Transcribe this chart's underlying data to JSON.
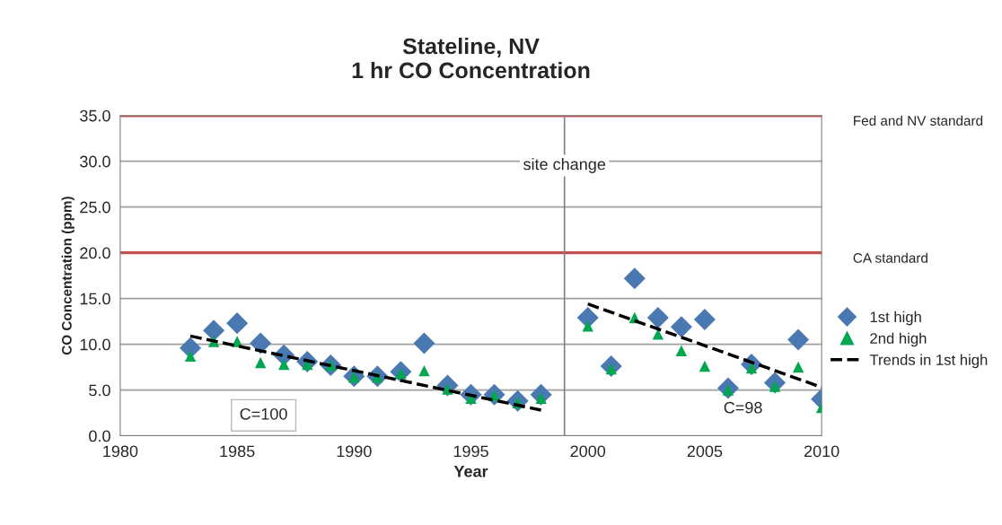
{
  "chart_data": {
    "type": "scatter",
    "title": "Stateline, NV\n1 hr CO Concentration",
    "xlabel": "Year",
    "ylabel": "CO Concentration (ppm)",
    "x": [
      1983,
      1984,
      1985,
      1986,
      1987,
      1988,
      1989,
      1990,
      1991,
      1992,
      1993,
      1994,
      1995,
      1996,
      1997,
      1998,
      2000,
      2001,
      2002,
      2003,
      2004,
      2005,
      2006,
      2007,
      2008,
      2009,
      2010
    ],
    "series": [
      {
        "name": "1st high",
        "color": "#4a78b0",
        "marker": "diamond",
        "values": [
          9.6,
          11.5,
          12.3,
          10.1,
          8.8,
          8.1,
          7.7,
          6.5,
          6.5,
          7.0,
          10.1,
          5.5,
          4.5,
          4.5,
          3.8,
          4.5,
          12.9,
          7.6,
          17.2,
          12.9,
          11.9,
          12.7,
          5.2,
          7.8,
          5.8,
          10.5,
          4.0
        ]
      },
      {
        "name": "2nd high",
        "color": "#00a650",
        "marker": "triangle",
        "values": [
          8.7,
          10.3,
          10.3,
          8.0,
          7.8,
          7.8,
          7.7,
          6.4,
          6.4,
          6.8,
          7.1,
          5.1,
          4.1,
          4.4,
          3.6,
          4.1,
          12.0,
          7.3,
          12.9,
          11.1,
          9.3,
          7.6,
          5.0,
          7.4,
          5.4,
          7.5,
          3.1
        ]
      },
      {
        "name": "Trends in 1st high",
        "type": "line",
        "color": "#000000",
        "line_style": "dashed",
        "x": [
          1983,
          1998,
          1999,
          2000,
          2010
        ],
        "values": [
          10.9,
          2.8,
          null,
          14.4,
          5.3
        ]
      }
    ],
    "xlim": [
      1980,
      2010
    ],
    "xticks": [
      1980,
      1985,
      1990,
      1995,
      2000,
      2005,
      2010
    ],
    "ylim": [
      0,
      35
    ],
    "yticks": [
      {
        "value": 0,
        "label": "0.0"
      },
      {
        "value": 5,
        "label": "5.0"
      },
      {
        "value": 10,
        "label": "10.0"
      },
      {
        "value": 15,
        "label": "15.0"
      },
      {
        "value": 20,
        "label": "20.0"
      },
      {
        "value": 25,
        "label": "25.0"
      },
      {
        "value": 30,
        "label": "30.0"
      },
      {
        "value": 35,
        "label": "35.0"
      }
    ],
    "grid": "y",
    "legend": "right",
    "ref_lines": [
      {
        "axis": "y",
        "value": 35,
        "label": "Fed and NV standard",
        "color": "#c0504d"
      },
      {
        "axis": "y",
        "value": 20,
        "label": "CA standard",
        "color": "#c0504d"
      },
      {
        "axis": "x",
        "value": 1999,
        "label": "site change",
        "color": "#808080"
      }
    ],
    "annotations": [
      "C=100",
      "C=98"
    ]
  }
}
